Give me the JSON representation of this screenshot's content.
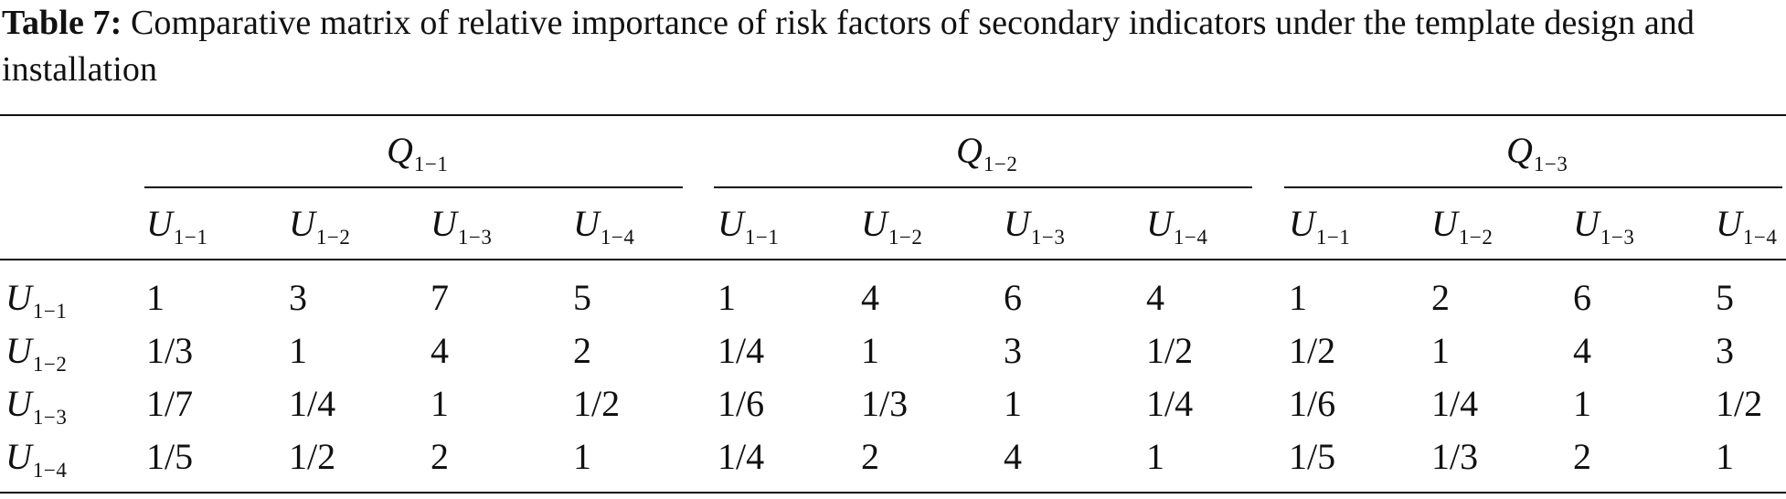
{
  "caption": {
    "label": "Table 7:",
    "text": "Comparative matrix of relative importance of risk factors of secondary indicators under the template design and installation"
  },
  "table": {
    "groups": [
      {
        "symbol": "Q",
        "subscript": "1−1"
      },
      {
        "symbol": "Q",
        "subscript": "1−2"
      },
      {
        "symbol": "Q",
        "subscript": "1−3"
      }
    ],
    "columns": [
      {
        "symbol": "U",
        "subscript": "1−1"
      },
      {
        "symbol": "U",
        "subscript": "1−2"
      },
      {
        "symbol": "U",
        "subscript": "1−3"
      },
      {
        "symbol": "U",
        "subscript": "1−4"
      }
    ],
    "rows": [
      {
        "symbol": "U",
        "subscript": "1−1",
        "values": [
          "1",
          "3",
          "7",
          "5",
          "1",
          "4",
          "6",
          "4",
          "1",
          "2",
          "6",
          "5"
        ]
      },
      {
        "symbol": "U",
        "subscript": "1−2",
        "values": [
          "1/3",
          "1",
          "4",
          "2",
          "1/4",
          "1",
          "3",
          "1/2",
          "1/2",
          "1",
          "4",
          "3"
        ]
      },
      {
        "symbol": "U",
        "subscript": "1−3",
        "values": [
          "1/7",
          "1/4",
          "1",
          "1/2",
          "1/6",
          "1/3",
          "1",
          "1/4",
          "1/6",
          "1/4",
          "1",
          "1/2"
        ]
      },
      {
        "symbol": "U",
        "subscript": "1−4",
        "values": [
          "1/5",
          "1/2",
          "2",
          "1",
          "1/4",
          "2",
          "4",
          "1",
          "1/5",
          "1/3",
          "2",
          "1"
        ]
      }
    ]
  }
}
